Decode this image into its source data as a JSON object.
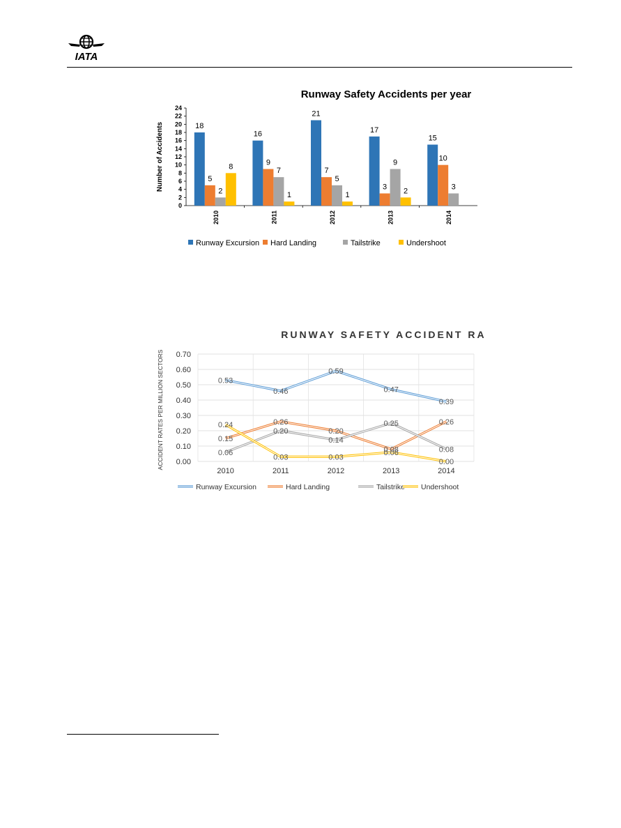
{
  "header": {
    "logo_text": "IATA"
  },
  "chart_data": [
    {
      "type": "bar",
      "title": "Runway Safety Accidents per year",
      "ylabel": "Number of Accidents",
      "xlabel": "",
      "ylim": [
        0,
        24
      ],
      "ytick_step": 2,
      "categories": [
        "2010",
        "2011",
        "2012",
        "2013",
        "2014"
      ],
      "series": [
        {
          "name": "Runway Excursion",
          "color": "#2e75b6",
          "values": [
            18,
            16,
            21,
            17,
            15
          ]
        },
        {
          "name": "Hard Landing",
          "color": "#ed7d31",
          "values": [
            5,
            9,
            7,
            3,
            10
          ]
        },
        {
          "name": "Tailstrike",
          "color": "#a5a5a5",
          "values": [
            2,
            7,
            5,
            9,
            3
          ]
        },
        {
          "name": "Undershoot",
          "color": "#ffc000",
          "values": [
            8,
            1,
            1,
            2,
            null
          ]
        }
      ],
      "legend": "bottom",
      "grid": false
    },
    {
      "type": "line",
      "title": "RUNWAY SAFETY ACCIDENT RATES",
      "ylabel": "ACCIDENT RATES PER MILLION SECTORS",
      "xlabel": "",
      "ylim": [
        0,
        0.7
      ],
      "ytick_step": 0.1,
      "categories": [
        "2010",
        "2011",
        "2012",
        "2013",
        "2014"
      ],
      "series": [
        {
          "name": "Runway Excursion",
          "color": "#5b9bd5",
          "values": [
            0.53,
            0.46,
            0.59,
            0.47,
            0.39
          ]
        },
        {
          "name": "Hard Landing",
          "color": "#ed7d31",
          "values": [
            0.15,
            0.26,
            0.2,
            0.08,
            0.26
          ]
        },
        {
          "name": "Tailstrike",
          "color": "#a5a5a5",
          "values": [
            0.06,
            0.2,
            0.14,
            0.25,
            0.08
          ]
        },
        {
          "name": "Undershoot",
          "color": "#ffc000",
          "values": [
            0.24,
            0.03,
            0.03,
            0.06,
            0.0
          ]
        }
      ],
      "legend": "bottom",
      "grid": true
    }
  ]
}
